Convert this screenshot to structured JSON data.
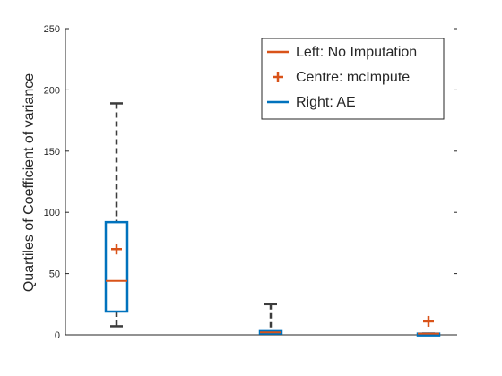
{
  "chart_data": {
    "type": "box",
    "ylabel": "Quartiles of Coefficient of variance",
    "xlabel": "",
    "ylim": [
      0,
      250
    ],
    "yticks": [
      0,
      50,
      100,
      150,
      200,
      250
    ],
    "grid": false,
    "legend_position": "top-right",
    "legend": [
      {
        "label": "Left: No Imputation",
        "marker": "line",
        "color": "#D95319"
      },
      {
        "label": "Centre: mcImpute",
        "marker": "plus",
        "color": "#D95319"
      },
      {
        "label": "Right: AE",
        "marker": "line",
        "color": "#0072BD"
      }
    ],
    "boxes": [
      {
        "group": 1,
        "lower_whisker": 7,
        "q1": 19,
        "median": 44,
        "q3": 92,
        "upper_whisker": 189,
        "mean": 70
      },
      {
        "group": 2,
        "lower_whisker": 1,
        "q1": 1,
        "median": 2,
        "q3": 3,
        "upper_whisker": 25
      },
      {
        "group": 3,
        "lower_whisker": 1,
        "q1": 1,
        "median": 1,
        "q3": 1,
        "upper_whisker": 1,
        "mean": 11
      }
    ],
    "colors": {
      "box": "#0072BD",
      "median": "#D95319",
      "mean": "#D95319",
      "whisker": "#3C3C3C",
      "axis": "#262626"
    }
  }
}
